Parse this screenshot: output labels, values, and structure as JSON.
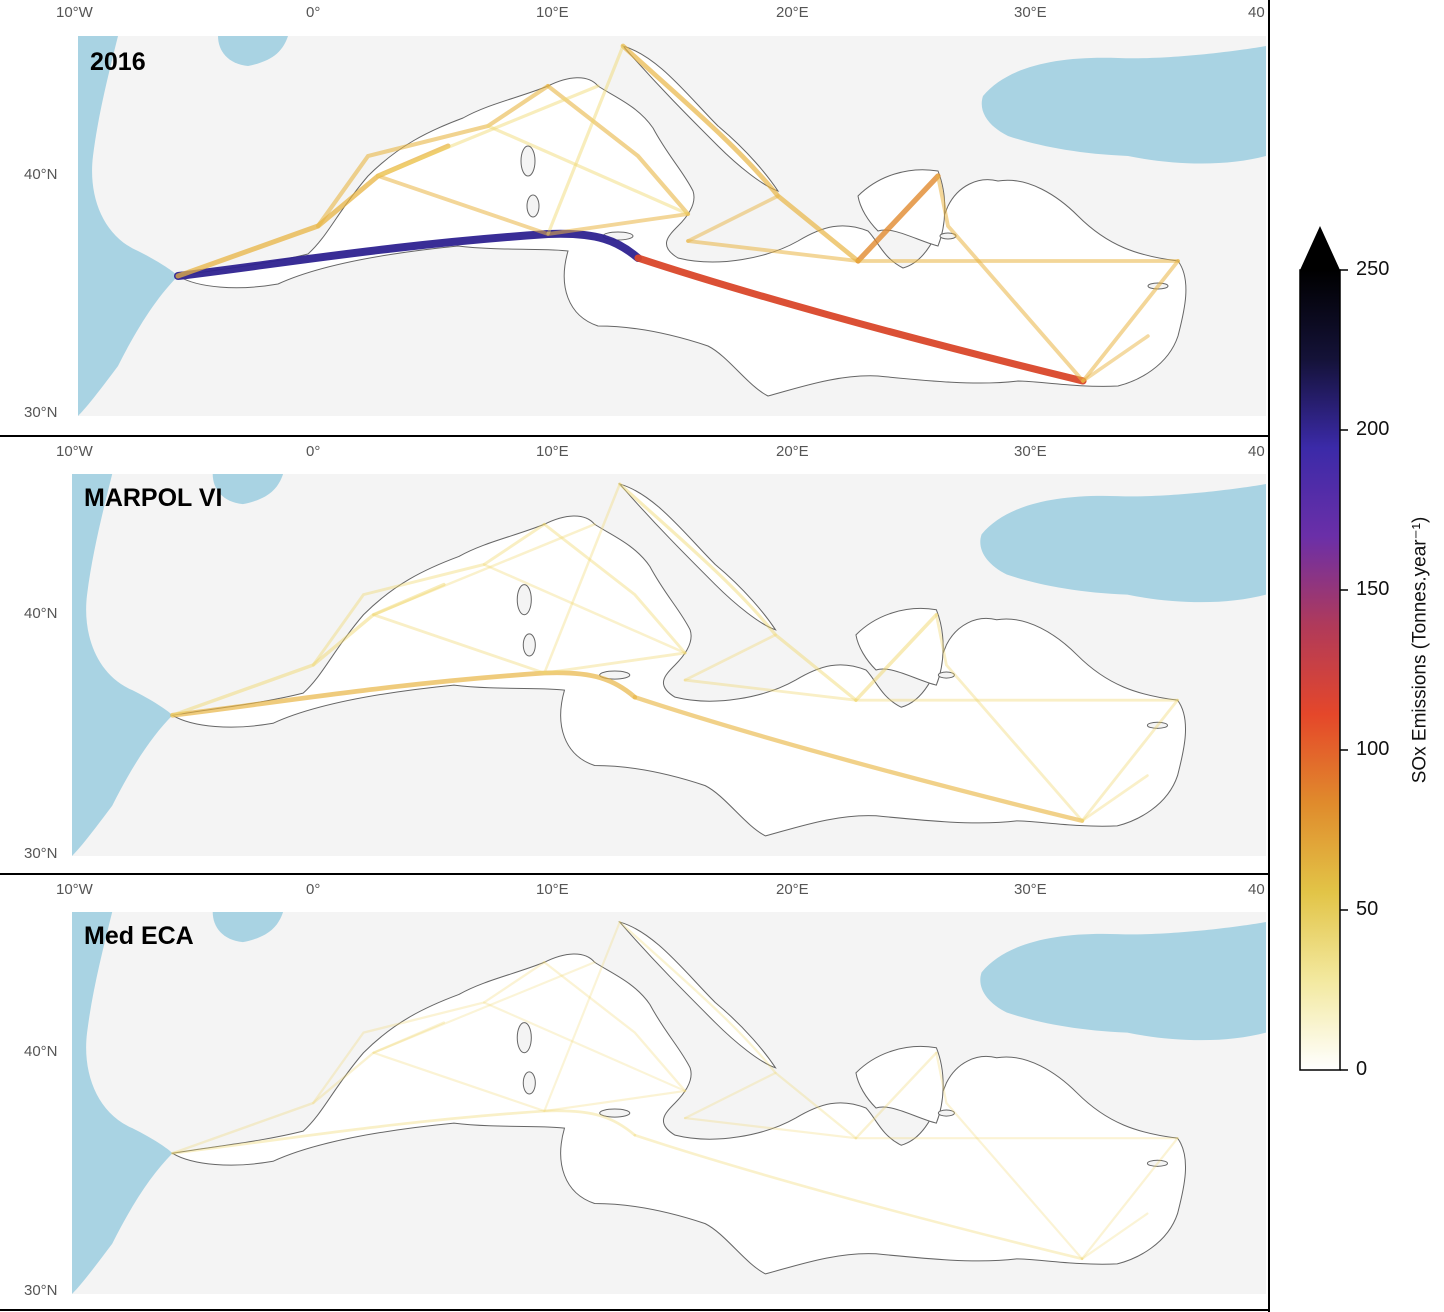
{
  "panels": [
    {
      "title": "2016",
      "intensity": 1.0
    },
    {
      "title": "MARPOL VI",
      "intensity": 0.45
    },
    {
      "title": "Med ECA",
      "intensity": 0.12
    }
  ],
  "axes": {
    "x_ticks": [
      "10°W",
      "0°",
      "10°E",
      "20°E",
      "30°E",
      "40"
    ],
    "y_ticks": [
      "40°N",
      "30°N"
    ]
  },
  "colorbar": {
    "title": "SOx Emissions (Tonnes.year⁻¹)",
    "ticks": [
      "250",
      "200",
      "150",
      "100",
      "50",
      "0"
    ],
    "range": [
      0,
      250
    ],
    "extend": "max",
    "colors": [
      "#ffffff",
      "#f3e9a0",
      "#e2c447",
      "#e08b2c",
      "#e5472a",
      "#b03a5a",
      "#6b2fa8",
      "#3b2aa8",
      "#141238",
      "#000000"
    ]
  },
  "map_colors": {
    "sea_outside": "#a9d3e3",
    "land": "#f4f4f4",
    "med_sea": "#ffffff",
    "route_low": "#f0d66a",
    "route_mid": "#e0882b",
    "route_high": "#2e2290"
  }
}
